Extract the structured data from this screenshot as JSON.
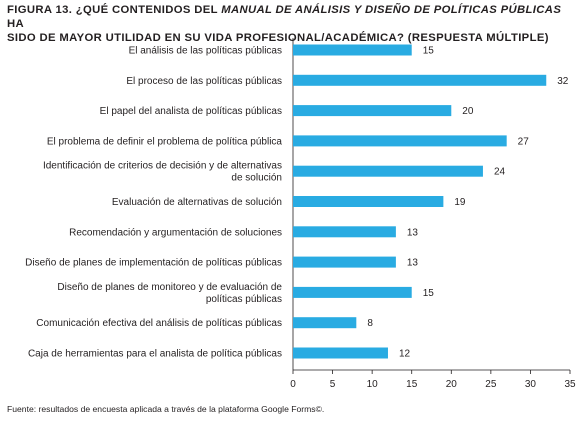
{
  "figure": {
    "title_part1": "FIGURA 13. ¿QUÉ CONTENIDOS DEL ",
    "title_part2_italic": "MANUAL DE ANÁLISIS Y DISEÑO DE POLÍTICAS PÚBLICAS",
    "title_part3": " HA",
    "title_line2": "SIDO DE MAYOR UTILIDAD EN SU VIDA PROFESIONAL/ACADÉMICA? (RESPUESTA MÚLTIPLE)",
    "footnote": "Fuente: resultados de encuesta aplicada a través de la plataforma Google Forms©."
  },
  "chart_data": {
    "type": "bar",
    "orientation": "horizontal",
    "categories": [
      [
        "El análisis de las políticas públicas"
      ],
      [
        "El proceso de las políticas públicas"
      ],
      [
        "El papel del analista de políticas públicas"
      ],
      [
        "El problema de definir el problema de política pública"
      ],
      [
        "Identificación de criterios de decisión y de alternativas",
        "de solución"
      ],
      [
        "Evaluación de alternativas de solución"
      ],
      [
        "Recomendación y argumentación de soluciones"
      ],
      [
        "Diseño de planes de implementación de políticas públicas"
      ],
      [
        "Diseño de planes de monitoreo y de evaluación de",
        "políticas públicas"
      ],
      [
        "Comunicación efectiva del análisis de políticas públicas"
      ],
      [
        "Caja de herramientas para el analista de política públicas"
      ]
    ],
    "values": [
      15,
      32,
      20,
      27,
      24,
      19,
      13,
      13,
      15,
      8,
      12
    ],
    "xlim": [
      0,
      35
    ],
    "xticks": [
      0,
      5,
      10,
      15,
      20,
      25,
      30,
      35
    ],
    "bar_color": "#29abe2",
    "grid": false,
    "legend": "none"
  }
}
